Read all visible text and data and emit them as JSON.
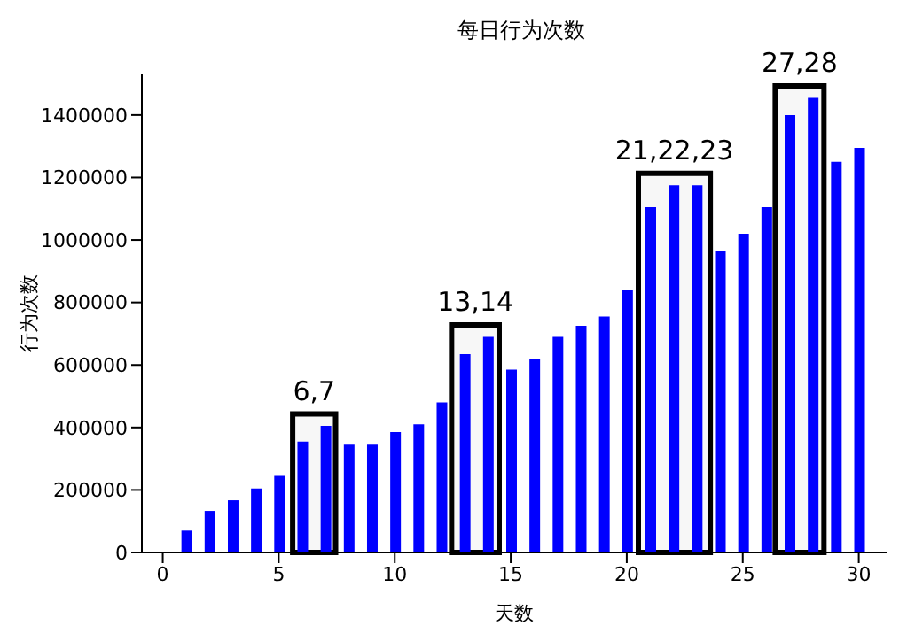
{
  "chart_data": {
    "type": "bar",
    "title": "每日行为次数",
    "xlabel": "天数",
    "ylabel": "行为次数",
    "x": [
      1,
      2,
      3,
      4,
      5,
      6,
      7,
      8,
      9,
      10,
      11,
      12,
      13,
      14,
      15,
      16,
      17,
      18,
      19,
      20,
      21,
      22,
      23,
      24,
      25,
      26,
      27,
      28,
      29,
      30
    ],
    "values": [
      70000,
      133000,
      167000,
      205000,
      245000,
      355000,
      405000,
      345000,
      345000,
      385000,
      410000,
      480000,
      635000,
      690000,
      585000,
      620000,
      690000,
      725000,
      755000,
      840000,
      1105000,
      1175000,
      1175000,
      965000,
      1020000,
      1105000,
      1400000,
      1455000,
      1250000,
      1295000
    ],
    "color": "#0000ff",
    "xlim": [
      -0.9,
      31.2
    ],
    "xticks": [
      0,
      5,
      10,
      15,
      20,
      25,
      30
    ],
    "ylim": [
      0,
      1530000
    ],
    "yticks": [
      0,
      200000,
      400000,
      600000,
      800000,
      1000000,
      1200000,
      1400000
    ],
    "bands": [
      {
        "axis": "x",
        "from": 5.6,
        "to": 7.45,
        "label": "6,7",
        "color": "#000000"
      },
      {
        "axis": "x",
        "from": 12.45,
        "to": 14.5,
        "label": "13,14",
        "color": "#000000"
      },
      {
        "axis": "x",
        "from": 20.5,
        "to": 23.6,
        "label": "21,22,23",
        "color": "#000000"
      },
      {
        "axis": "x",
        "from": 26.4,
        "to": 28.5,
        "label": "27,28",
        "color": "#000000"
      }
    ],
    "grid": false,
    "legend": false
  }
}
